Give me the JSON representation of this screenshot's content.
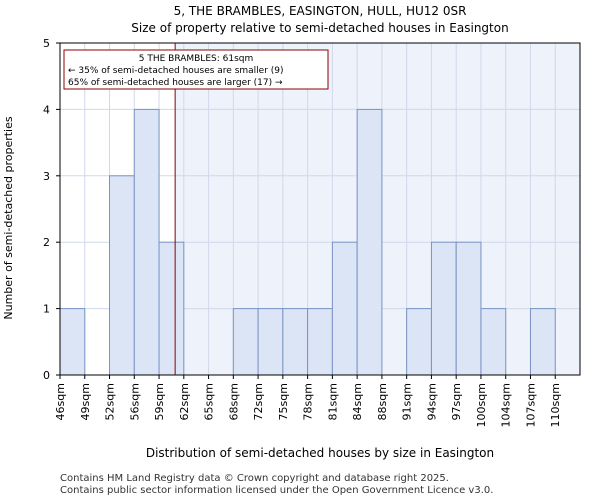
{
  "chart_data": {
    "type": "bar",
    "title": "5, THE BRAMBLES, EASINGTON, HULL, HU12 0SR",
    "subtitle": "Size of property relative to semi-detached houses in Easington",
    "xlabel": "Distribution of semi-detached houses by size in Easington",
    "ylabel": "Number of semi-detached properties",
    "categories": [
      "46sqm",
      "49sqm",
      "52sqm",
      "56sqm",
      "59sqm",
      "62sqm",
      "65sqm",
      "68sqm",
      "72sqm",
      "75sqm",
      "78sqm",
      "81sqm",
      "84sqm",
      "88sqm",
      "91sqm",
      "94sqm",
      "97sqm",
      "100sqm",
      "104sqm",
      "107sqm",
      "110sqm"
    ],
    "values": [
      1,
      0,
      3,
      4,
      2,
      0,
      0,
      1,
      1,
      1,
      1,
      2,
      4,
      0,
      1,
      2,
      2,
      1,
      0,
      1,
      0
    ],
    "ylim": [
      0,
      5
    ],
    "yticks": [
      0,
      1,
      2,
      3,
      4,
      5
    ],
    "grid": true,
    "marker": {
      "position_bin": 4.65,
      "line_color": "#8b0000",
      "label_line1": "5 THE BRAMBLES: 61sqm",
      "label_line2": "← 35% of semi-detached houses are smaller (9)",
      "label_line3": "65% of semi-detached houses are larger (17) →"
    },
    "colors": {
      "bar_fill": "#dbe5f5",
      "bar_stroke": "#7a93c4",
      "highlight_bg": "#eef2fb",
      "axis": "#000000",
      "grid": "#d0d8ea"
    }
  },
  "footer": {
    "line1": "Contains HM Land Registry data © Crown copyright and database right 2025.",
    "line2": "Contains public sector information licensed under the Open Government Licence v3.0."
  }
}
